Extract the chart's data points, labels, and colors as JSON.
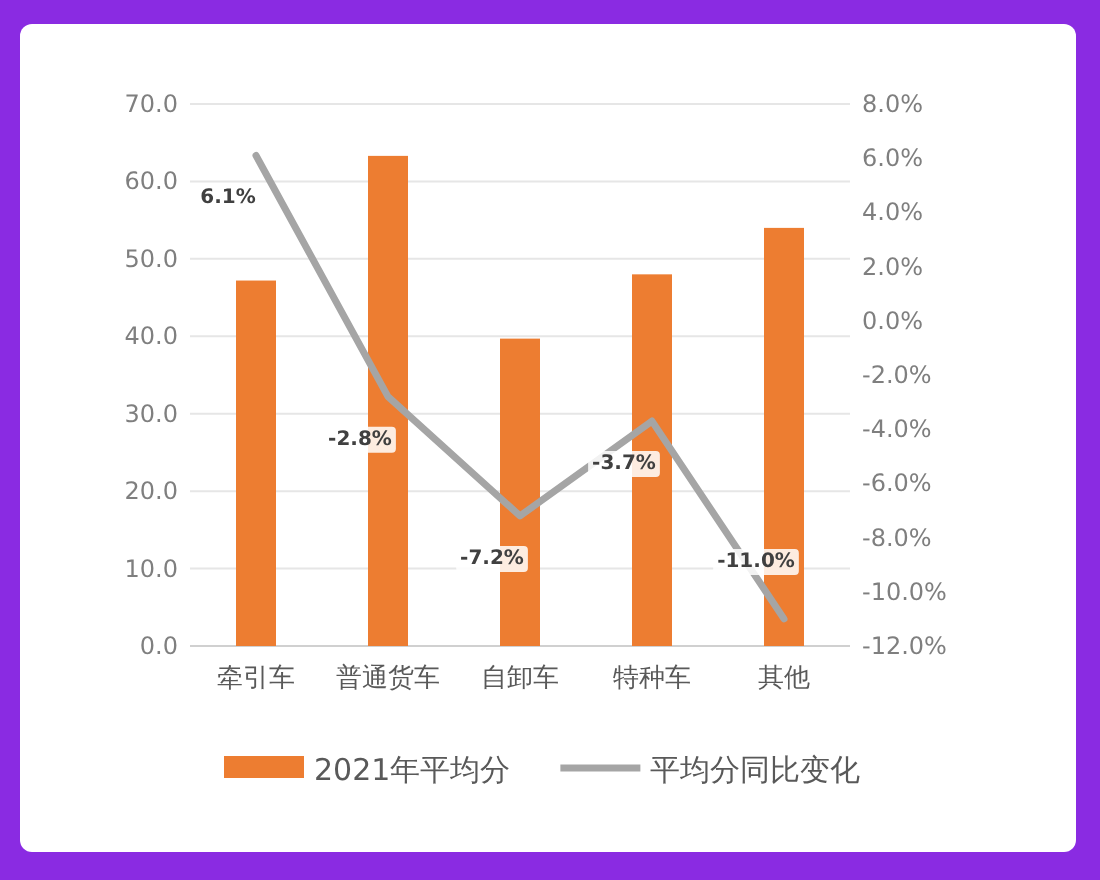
{
  "chart_data": {
    "type": "bar",
    "categories": [
      "牵引车",
      "普通货车",
      "自卸车",
      "特种车",
      "其他"
    ],
    "series": [
      {
        "name": "2021年平均分",
        "color": "#ed7d31",
        "values": [
          47.2,
          63.3,
          39.7,
          48.0,
          54.0
        ]
      },
      {
        "name": "平均分同比变化",
        "type": "line",
        "axis": "y2",
        "color": "#a5a5a5",
        "marker": "none",
        "values": [
          6.1,
          -2.8,
          -7.2,
          -3.7,
          -11.0
        ],
        "value_labels": [
          "6.1%",
          "-2.8%",
          "-7.2%",
          "-3.7%",
          "-11.0%"
        ]
      }
    ],
    "ylim": [
      0,
      70
    ],
    "yticks": [
      {
        "value": 0,
        "label": "0.0"
      },
      {
        "value": 10,
        "label": "10.0"
      },
      {
        "value": 20,
        "label": "20.0"
      },
      {
        "value": 30,
        "label": "30.0"
      },
      {
        "value": 40,
        "label": "40.0"
      },
      {
        "value": 50,
        "label": "50.0"
      },
      {
        "value": 60,
        "label": "60.0"
      },
      {
        "value": 70,
        "label": "70.0"
      }
    ],
    "y2lim": [
      -12,
      8
    ],
    "y2ticks": [
      {
        "value": -12,
        "label": "-12.0%"
      },
      {
        "value": -10,
        "label": "-10.0%"
      },
      {
        "value": -8,
        "label": "-8.0%"
      },
      {
        "value": -6,
        "label": "-6.0%"
      },
      {
        "value": -4,
        "label": "-4.0%"
      },
      {
        "value": -2,
        "label": "-2.0%"
      },
      {
        "value": 0,
        "label": "0.0%"
      },
      {
        "value": 2,
        "label": "2.0%"
      },
      {
        "value": 4,
        "label": "4.0%"
      },
      {
        "value": 6,
        "label": "6.0%"
      },
      {
        "value": 8,
        "label": "8.0%"
      }
    ],
    "grid": "y",
    "legend": "bottom"
  }
}
